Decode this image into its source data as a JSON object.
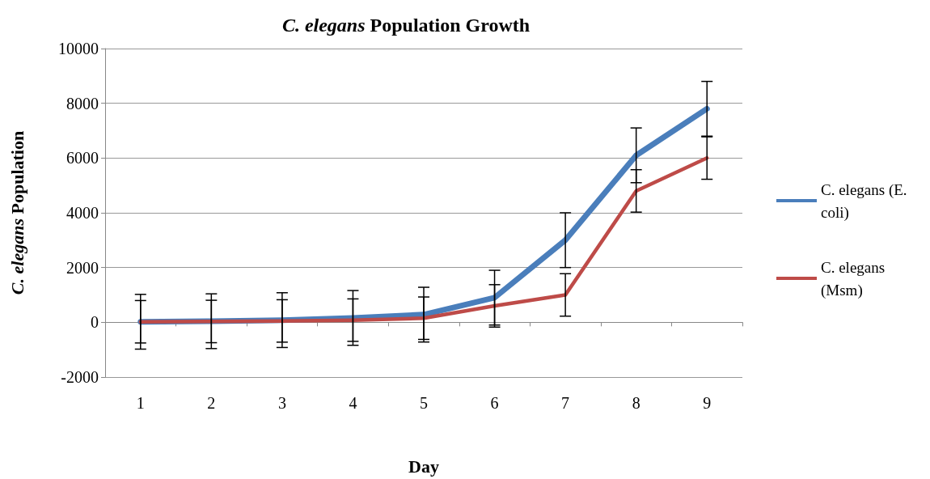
{
  "chart_data": {
    "type": "line",
    "title": "C. elegans Population Growth",
    "xlabel": "Day",
    "ylabel": "C. elegans Population",
    "categories": [
      "1",
      "2",
      "3",
      "4",
      "5",
      "6",
      "7",
      "8",
      "9"
    ],
    "series": [
      {
        "name": "C. elegans (E. coli)",
        "color": "#4a7ebb",
        "values": [
          20,
          40,
          80,
          160,
          280,
          900,
          3000,
          6100,
          7800
        ],
        "errors": [
          1000,
          1000,
          1000,
          1000,
          1000,
          1000,
          1000,
          1000,
          1000
        ]
      },
      {
        "name": "C. elegans (Msm)",
        "color": "#be4b48",
        "values": [
          20,
          30,
          50,
          80,
          150,
          600,
          1000,
          4800,
          6000
        ],
        "errors": [
          775,
          775,
          775,
          775,
          775,
          775,
          775,
          775,
          775
        ]
      }
    ],
    "ylim": [
      -2000,
      10000
    ],
    "yticks": [
      -2000,
      0,
      2000,
      4000,
      6000,
      8000,
      10000
    ],
    "grid": "y",
    "legend": "right",
    "marker": "none",
    "line_style": "solid"
  }
}
